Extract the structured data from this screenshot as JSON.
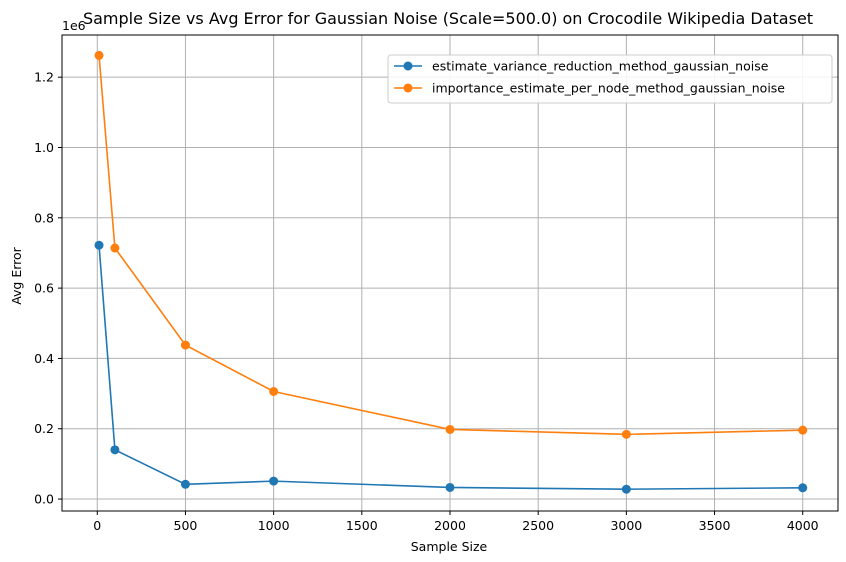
{
  "chart_data": {
    "type": "line",
    "title": "Sample Size vs Avg Error for Gaussian Noise (Scale=500.0) on Crocodile Wikipedia Dataset",
    "xlabel": "Sample Size",
    "ylabel": "Avg Error",
    "y_offset_label": "1e6",
    "y_multiplier": 1000000,
    "xlim": [
      -200,
      4200
    ],
    "ylim": [
      -0.034,
      1.32
    ],
    "x_ticks": [
      0,
      500,
      1000,
      1500,
      2000,
      2500,
      3000,
      3500,
      4000
    ],
    "x_tick_labels": [
      "0",
      "500",
      "1000",
      "1500",
      "2000",
      "2500",
      "3000",
      "3500",
      "4000"
    ],
    "y_ticks": [
      0,
      0.2,
      0.4,
      0.6,
      0.8,
      1.0,
      1.2
    ],
    "y_tick_labels": [
      "0.0",
      "0.2",
      "0.4",
      "0.6",
      "0.8",
      "1.0",
      "1.2"
    ],
    "grid": true,
    "legend_position": "top-right",
    "x": [
      10,
      100,
      500,
      1000,
      2000,
      3000,
      4000
    ],
    "series": [
      {
        "name": "estimate_variance_reduction_method_gaussian_noise",
        "color": "#1f77b4",
        "values": [
          0.722,
          0.14,
          0.042,
          0.051,
          0.033,
          0.028,
          0.032
        ]
      },
      {
        "name": "importance_estimate_per_node_method_gaussian_noise",
        "color": "#ff7f0e",
        "values": [
          1.262,
          0.714,
          0.438,
          0.306,
          0.198,
          0.184,
          0.196
        ]
      }
    ]
  }
}
